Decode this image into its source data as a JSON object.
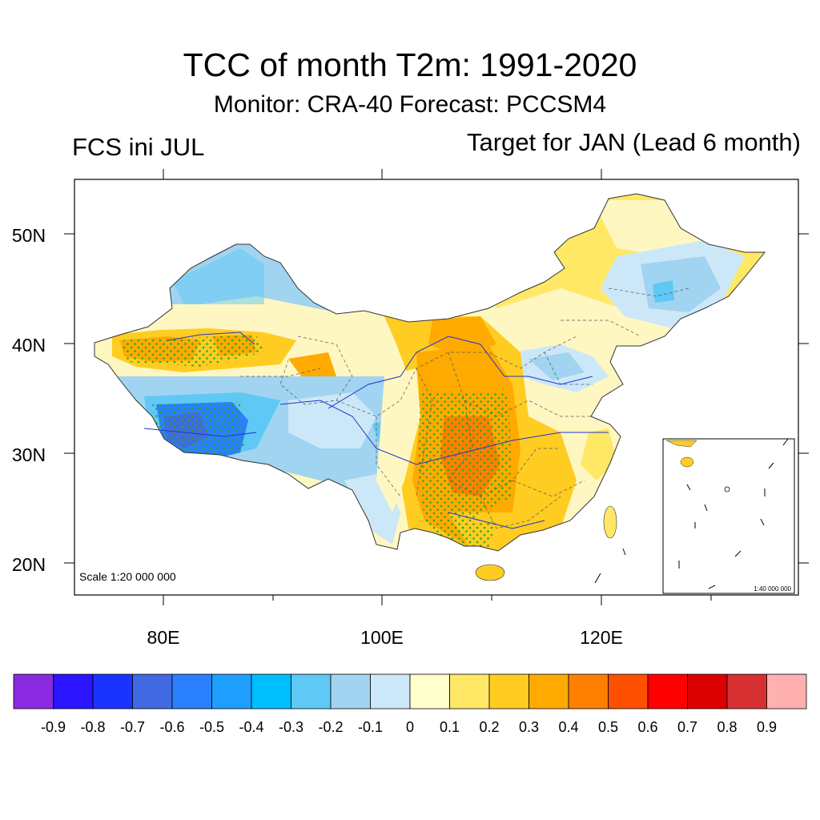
{
  "header": {
    "title": "TCC of month T2m: 1991-2020",
    "subtitle": "Monitor: CRA-40   Forecast: PCCSM4",
    "left_label": "FCS ini JUL",
    "right_label": "Target for JAN (Lead 6 month)"
  },
  "map": {
    "lat_ticks": [
      "50N",
      "40N",
      "30N",
      "20N"
    ],
    "lon_ticks": [
      "80E",
      "100E",
      "120E"
    ],
    "scale_label": "Scale 1:20 000 000",
    "inset_scale_label": "1:40 000 000"
  },
  "colorbar": {
    "colors": [
      "#8a2be2",
      "#2b14ff",
      "#1a33ff",
      "#4169e1",
      "#2a7fff",
      "#1e9fff",
      "#00bfff",
      "#5fc8f5",
      "#a0d4f0",
      "#cce8f8",
      "#ffffcc",
      "#ffe866",
      "#ffcc22",
      "#ffaa00",
      "#ff8000",
      "#ff4f00",
      "#ff0000",
      "#dd0000",
      "#d63030",
      "#ffb0b0"
    ],
    "labels": [
      "-0.9",
      "-0.8",
      "-0.7",
      "-0.6",
      "-0.5",
      "-0.4",
      "-0.3",
      "-0.2",
      "-0.1",
      "0",
      "0.1",
      "0.2",
      "0.3",
      "0.4",
      "0.5",
      "0.6",
      "0.7",
      "0.8",
      "0.9"
    ]
  }
}
